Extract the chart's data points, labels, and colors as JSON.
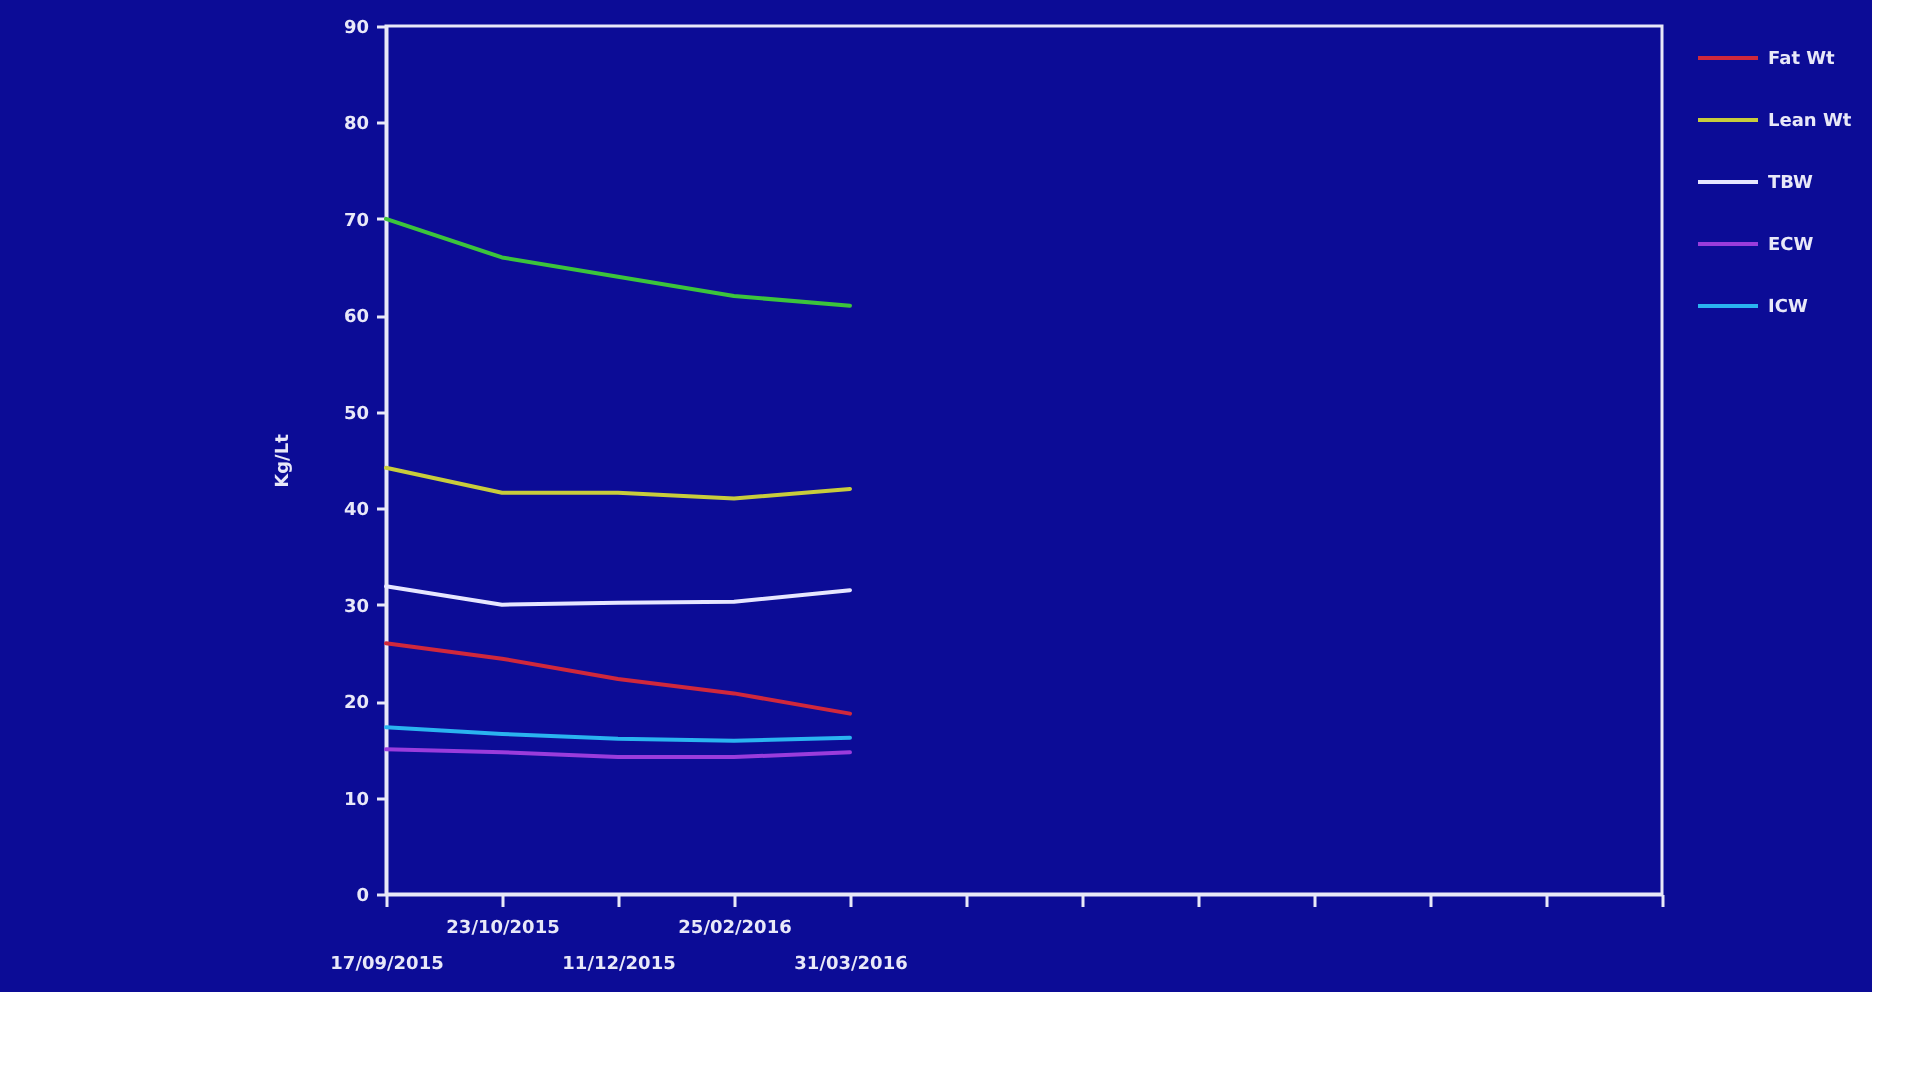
{
  "chart_data": {
    "type": "line",
    "ylabel": "Kg/Lt",
    "categories": [
      "17/09/2015",
      "23/10/2015",
      "11/12/2015",
      "25/02/2016",
      "31/03/2016",
      null,
      null,
      null,
      null,
      null,
      null,
      null
    ],
    "series": [
      {
        "color": "#3cc43c",
        "values": [
          70,
          66,
          64,
          62,
          61,
          null,
          null,
          null,
          null,
          null,
          null,
          null
        ]
      },
      {
        "name": "Fat Wt",
        "color": "#d0283c",
        "values": [
          26,
          24.4,
          22.3,
          20.8,
          18.7,
          null,
          null,
          null,
          null,
          null,
          null,
          null
        ]
      },
      {
        "name": "Lean Wt",
        "color": "#c8cc3c",
        "values": [
          44.2,
          41.6,
          41.6,
          41,
          42,
          null,
          null,
          null,
          null,
          null,
          null,
          null
        ]
      },
      {
        "name": "TBW",
        "color": "#e6e6ff",
        "values": [
          31.9,
          30,
          30.2,
          30.3,
          31.5,
          null,
          null,
          null,
          null,
          null,
          null,
          null
        ]
      },
      {
        "name": "ECW",
        "color": "#9a3cdc",
        "values": [
          15,
          14.7,
          14.2,
          14.2,
          14.7,
          null,
          null,
          null,
          null,
          null,
          null,
          null
        ]
      },
      {
        "name": "ICW",
        "color": "#2ab4f0",
        "values": [
          17.3,
          16.6,
          16.1,
          15.9,
          16.2,
          null,
          null,
          null,
          null,
          null,
          null,
          null
        ]
      }
    ],
    "ylim": [
      0,
      90
    ],
    "yticks": [
      0,
      10,
      20,
      30,
      40,
      50,
      60,
      70,
      80,
      90
    ],
    "legend": "right",
    "line_style": "solid"
  }
}
